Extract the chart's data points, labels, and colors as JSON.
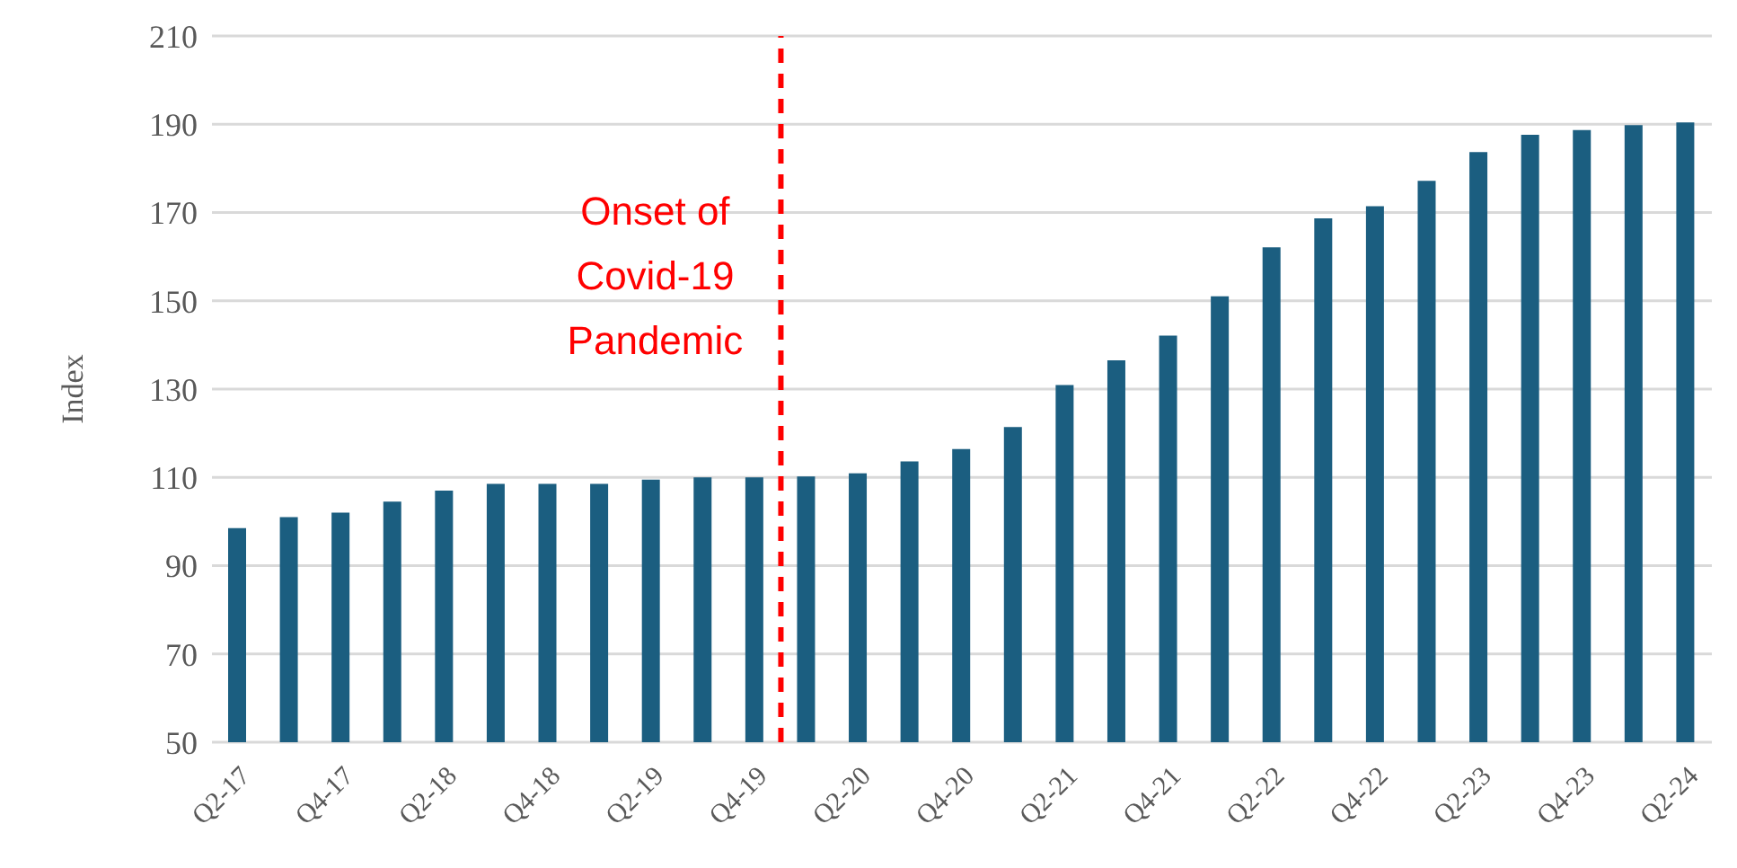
{
  "chart_data": {
    "type": "bar",
    "ylabel": "Index",
    "categories": [
      "Q2-17",
      null,
      "Q4-17",
      null,
      "Q2-18",
      null,
      "Q4-18",
      null,
      "Q2-19",
      null,
      "Q4-19",
      null,
      "Q2-20",
      null,
      "Q4-20",
      null,
      "Q2-21",
      null,
      "Q4-21",
      null,
      "Q2-22",
      null,
      "Q4-22",
      null,
      "Q2-23",
      null,
      "Q4-23",
      null,
      "Q2-24"
    ],
    "values": [
      98.5,
      101,
      102,
      104.5,
      107,
      108.5,
      108.5,
      108.5,
      109.5,
      110,
      110,
      110.2,
      110.9,
      113.6,
      116.4,
      121.4,
      130.9,
      136.5,
      142.1,
      151,
      162.1,
      168.7,
      171.4,
      177.2,
      183.7,
      187.6,
      188.7,
      189.8,
      190.4
    ],
    "color": "#1b5e80",
    "ylim": [
      50,
      210
    ],
    "yticks": [
      50,
      70,
      90,
      110,
      130,
      150,
      170,
      190,
      210
    ],
    "grid": "y",
    "ref_lines": [
      {
        "axis": "x",
        "value": "Q4-19",
        "label": "Onset of Covid-19 Pandemic",
        "color": "#ff0000",
        "line_style": "dashed"
      }
    ]
  }
}
